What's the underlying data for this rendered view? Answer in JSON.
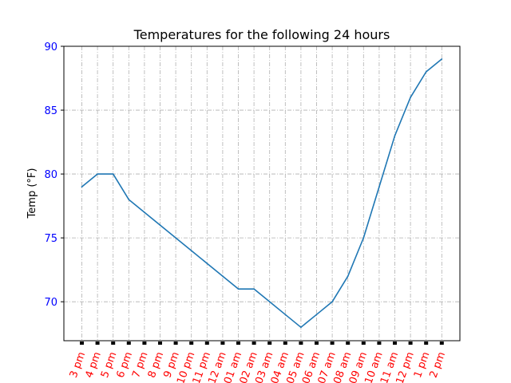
{
  "chart_data": {
    "type": "line",
    "title": "Temperatures for the following 24 hours",
    "xlabel": "",
    "ylabel": "Temp (°F)",
    "ylim": [
      66.95,
      90
    ],
    "yticks": [
      70,
      75,
      80,
      85,
      90
    ],
    "grid": true,
    "categories": [
      "3 pm",
      "4 pm",
      "5 pm",
      "6 pm",
      "7 pm",
      "8 pm",
      "9 pm",
      "10 pm",
      "11 pm",
      "12 am",
      "01 am",
      "02 am",
      "03 am",
      "04 am",
      "05 am",
      "06 am",
      "07 am",
      "08 am",
      "09 am",
      "10 am",
      "11 am",
      "12 pm",
      "1 pm",
      "2 pm"
    ],
    "series": [
      {
        "values": [
          79,
          80,
          80,
          78,
          77,
          76,
          75,
          74,
          73,
          72,
          71,
          71,
          70,
          69,
          68,
          69,
          70,
          72,
          75,
          79,
          83,
          86,
          88,
          89
        ],
        "color": "#1f77b4"
      }
    ],
    "colors": {
      "ytick_labels": "#0000ff",
      "xtick_labels": "#ff0000",
      "grid": "#b0b0b0"
    }
  }
}
